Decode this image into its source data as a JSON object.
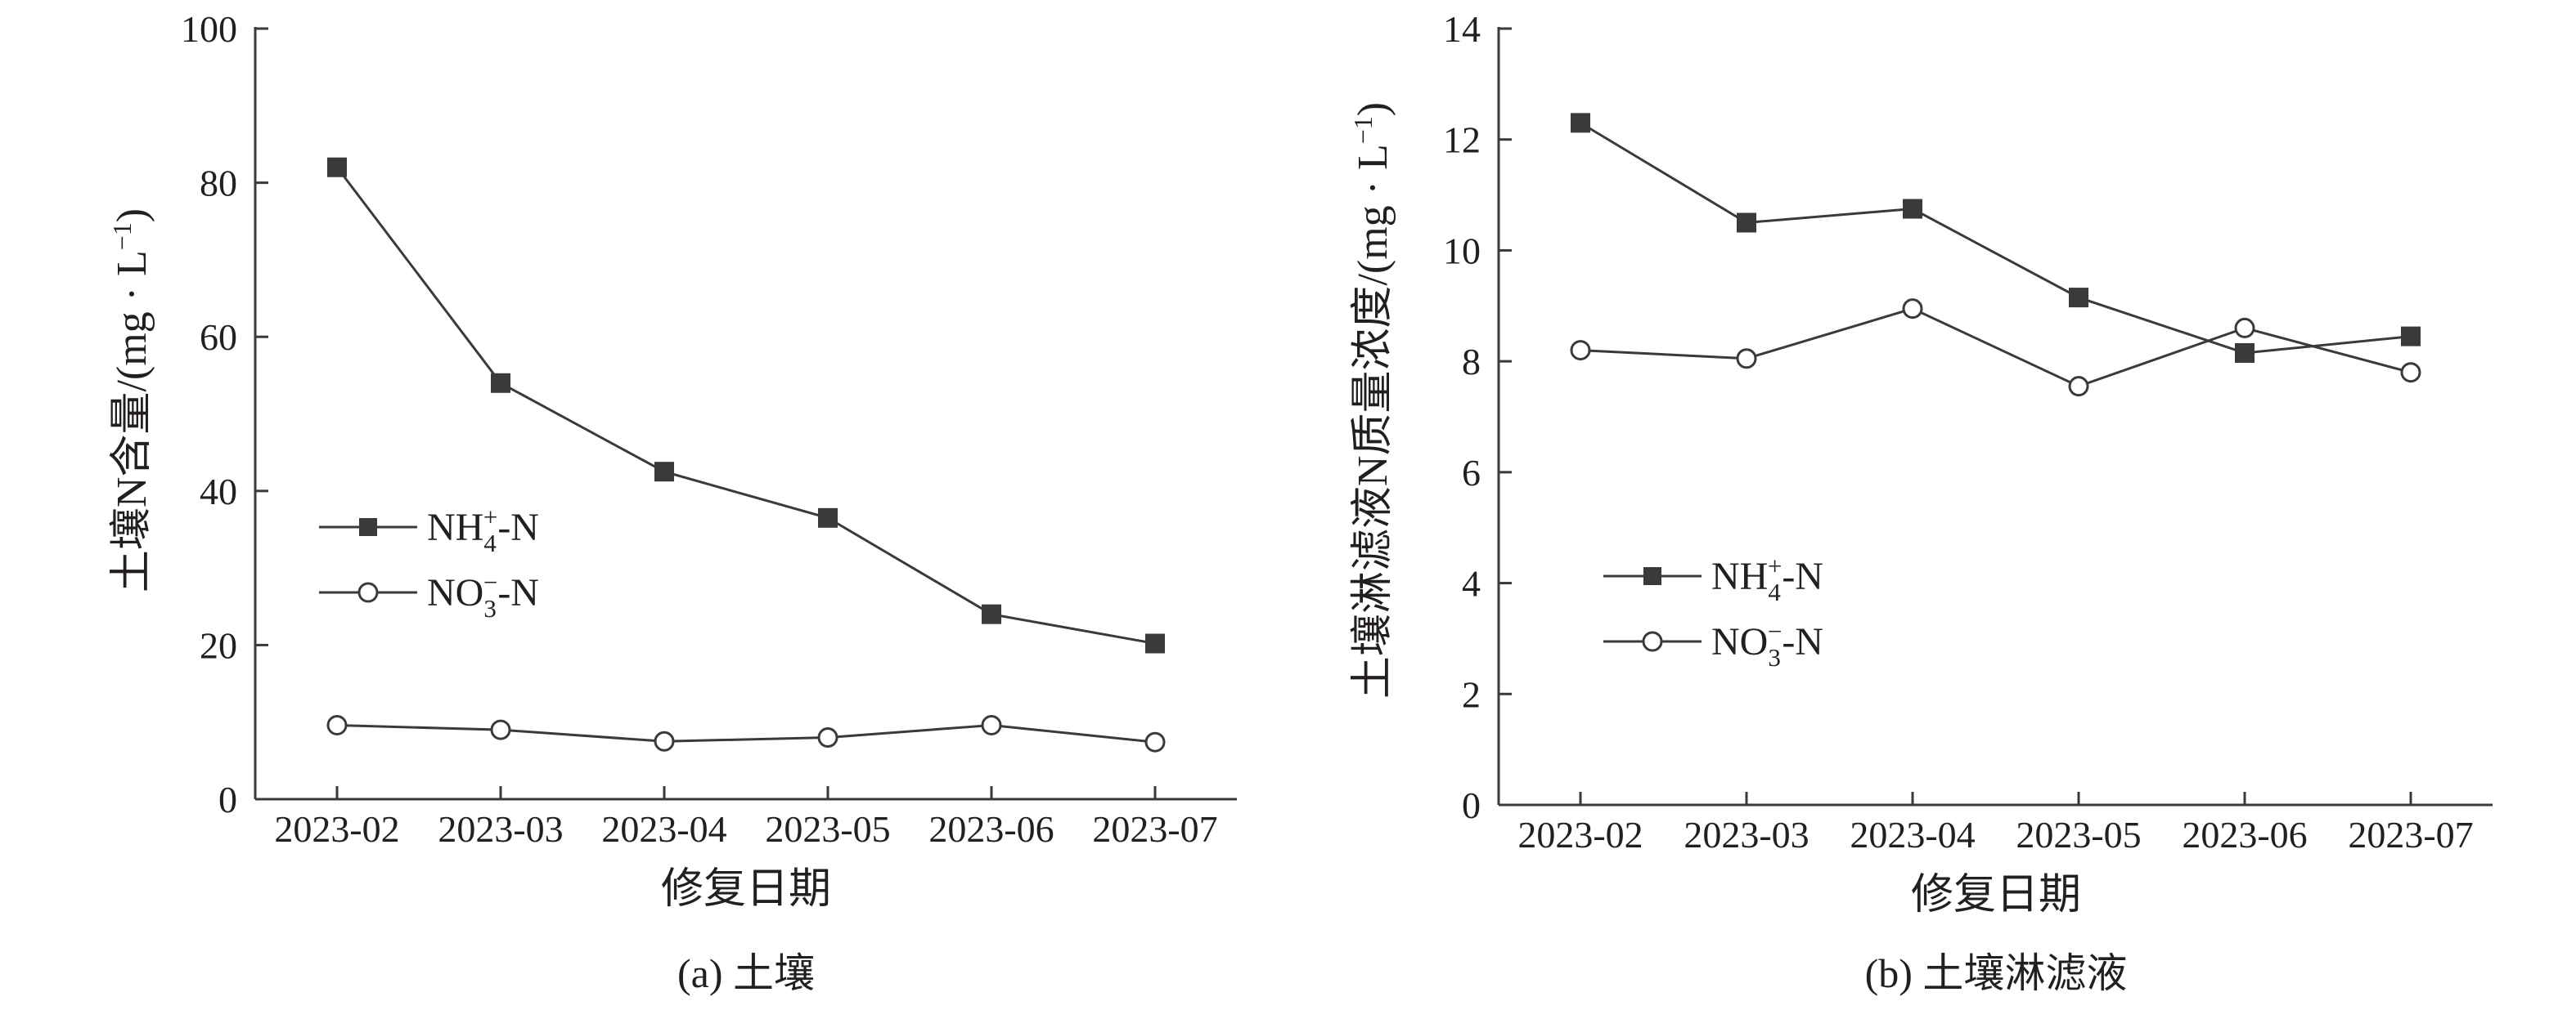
{
  "chart_data": [
    {
      "id": "a",
      "type": "line",
      "caption": "(a) 土壤",
      "xlabel": "修复日期",
      "ylabel": "土壤N含量/(mg · L",
      "ylabel_sup": "−1",
      "ylabel_close": ")",
      "categories": [
        "2023-02",
        "2023-03",
        "2023-04",
        "2023-05",
        "2023-06",
        "2023-07"
      ],
      "ylim": [
        0,
        100
      ],
      "yticks": [
        "0",
        "20",
        "40",
        "60",
        "80",
        "100"
      ],
      "legend_position": "left-middle",
      "series": [
        {
          "name": "NH4+-N",
          "marker": "square",
          "values": [
            82,
            54,
            42.5,
            36.5,
            24,
            20.2
          ]
        },
        {
          "name": "NO3−-N",
          "marker": "circle",
          "values": [
            9.6,
            9.0,
            7.5,
            8.0,
            9.6,
            7.4
          ]
        }
      ]
    },
    {
      "id": "b",
      "type": "line",
      "caption": "(b) 土壤淋滤液",
      "xlabel": "修复日期",
      "ylabel": "土壤淋滤液N质量浓度/(mg · L",
      "ylabel_sup": "−1",
      "ylabel_close": ")",
      "categories": [
        "2023-02",
        "2023-03",
        "2023-04",
        "2023-05",
        "2023-06",
        "2023-07"
      ],
      "ylim": [
        0,
        14
      ],
      "yticks": [
        "0",
        "2",
        "4",
        "6",
        "8",
        "10",
        "12",
        "14"
      ],
      "legend_position": "bottom-left",
      "series": [
        {
          "name": "NH4+-N",
          "marker": "square",
          "values": [
            12.3,
            10.5,
            10.75,
            9.15,
            8.15,
            8.45
          ]
        },
        {
          "name": "NO3−-N",
          "marker": "circle",
          "values": [
            8.2,
            8.05,
            8.95,
            7.55,
            8.6,
            7.8
          ]
        }
      ]
    }
  ],
  "legend": {
    "nh4": {
      "base": "NH",
      "sub": "4",
      "sup": "+",
      "tail": "-N"
    },
    "no3": {
      "base": "NO",
      "sub": "3",
      "sup": "−",
      "tail": "-N"
    }
  },
  "colors": {
    "line": "#3a3a3a",
    "text": "#231f20",
    "marker_fill": "#3a3a3a",
    "open_marker_fill": "#ffffff"
  }
}
